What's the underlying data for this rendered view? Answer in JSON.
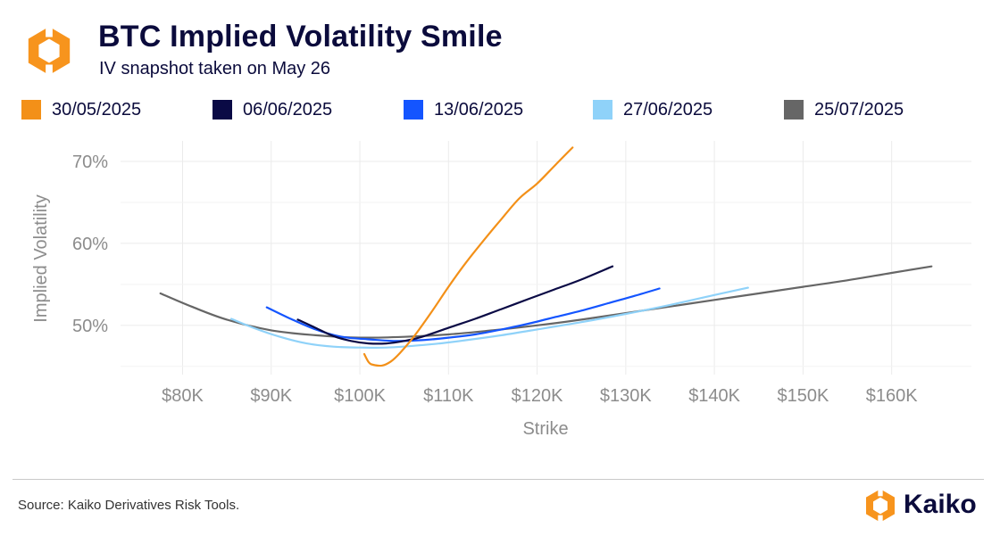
{
  "header": {
    "title": "BTC Implied Volatility Smile",
    "subtitle": "IV snapshot taken on May 26"
  },
  "footer": {
    "source": "Source: Kaiko Derivatives Risk Tools.",
    "brand": "Kaiko"
  },
  "colors": {
    "title": "#0b0b3c",
    "brand_orange": "#f7941d",
    "axis_text": "#8c8c8c",
    "grid": "#ebebeb"
  },
  "chart_data": {
    "type": "line",
    "title": "BTC Implied Volatility Smile",
    "subtitle": "IV snapshot taken on May 26",
    "xlabel": "Strike",
    "ylabel": "Implied Volatility",
    "xlim": [
      73000,
      169000
    ],
    "ylim": [
      44,
      72.5
    ],
    "x_ticks": [
      80000,
      90000,
      100000,
      110000,
      120000,
      130000,
      140000,
      150000,
      160000
    ],
    "x_tick_labels": [
      "$80K",
      "$90K",
      "$100K",
      "$110K",
      "$120K",
      "$130K",
      "$140K",
      "$150K",
      "$160K"
    ],
    "y_ticks": [
      50,
      60,
      70
    ],
    "y_tick_labels": [
      "50%",
      "60%",
      "70%"
    ],
    "grid": true,
    "legend_position": "top",
    "series": [
      {
        "name": "30/05/2025",
        "color": "#f39018",
        "x": [
          100500,
          101000,
          101500,
          102500,
          103500,
          104500,
          106000,
          108000,
          110000,
          112000,
          114000,
          116000,
          118000,
          120000,
          122000,
          124000
        ],
        "y": [
          46.5,
          45.5,
          45.2,
          45.1,
          45.6,
          46.6,
          48.5,
          51.5,
          54.7,
          57.7,
          60.4,
          63.0,
          65.5,
          67.3,
          69.5,
          71.7
        ]
      },
      {
        "name": "06/06/2025",
        "color": "#0a0a45",
        "x": [
          93000,
          95000,
          97000,
          99000,
          101000,
          103000,
          105000,
          107000,
          110000,
          113000,
          116000,
          119000,
          122000,
          125000,
          128500
        ],
        "y": [
          50.7,
          49.7,
          48.7,
          48.1,
          47.8,
          47.8,
          48.1,
          48.6,
          49.7,
          50.8,
          52.0,
          53.2,
          54.4,
          55.6,
          57.2
        ]
      },
      {
        "name": "13/06/2025",
        "color": "#1455ff",
        "x": [
          89500,
          92000,
          95000,
          98000,
          101000,
          104000,
          107000,
          110000,
          113000,
          116000,
          119000,
          122000,
          125000,
          128000,
          131000,
          133800
        ],
        "y": [
          52.2,
          50.9,
          49.5,
          48.6,
          48.3,
          48.1,
          48.2,
          48.5,
          48.9,
          49.5,
          50.2,
          51.0,
          51.8,
          52.7,
          53.6,
          54.5
        ]
      },
      {
        "name": "27/06/2025",
        "color": "#8fd2f9",
        "x": [
          85500,
          88000,
          91000,
          94000,
          97000,
          100000,
          103000,
          106000,
          109000,
          112000,
          116000,
          120000,
          125000,
          130000,
          135000,
          140000,
          143800
        ],
        "y": [
          50.8,
          49.7,
          48.6,
          47.8,
          47.4,
          47.3,
          47.3,
          47.5,
          47.8,
          48.2,
          48.8,
          49.5,
          50.4,
          51.4,
          52.5,
          53.7,
          54.6
        ]
      },
      {
        "name": "25/07/2025",
        "color": "#666666",
        "x": [
          77500,
          81000,
          85000,
          90000,
          95000,
          100000,
          105000,
          110000,
          115000,
          120000,
          125000,
          130000,
          135000,
          140000,
          145000,
          150000,
          155000,
          160000,
          164500
        ],
        "y": [
          53.9,
          52.3,
          50.7,
          49.4,
          48.8,
          48.5,
          48.6,
          48.9,
          49.4,
          50.0,
          50.7,
          51.5,
          52.3,
          53.1,
          53.9,
          54.7,
          55.5,
          56.4,
          57.2
        ]
      }
    ]
  }
}
